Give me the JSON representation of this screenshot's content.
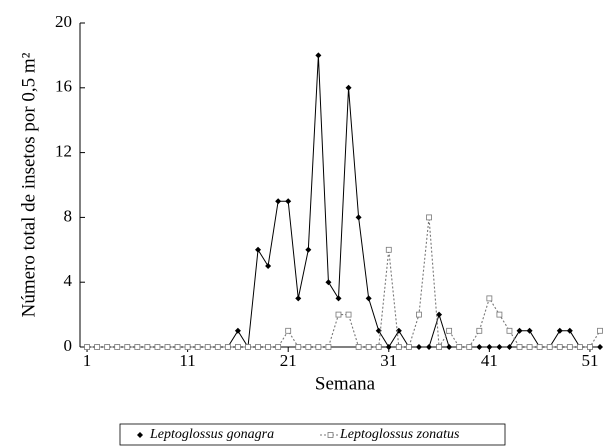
{
  "chart_data": {
    "type": "line",
    "ylabel": "Número total de insetos por  0,5 m²",
    "xlabel": "Semana",
    "x": [
      1,
      2,
      3,
      4,
      5,
      6,
      7,
      8,
      9,
      10,
      11,
      12,
      13,
      14,
      15,
      16,
      17,
      18,
      19,
      20,
      21,
      22,
      23,
      24,
      25,
      26,
      27,
      28,
      29,
      30,
      31,
      32,
      33,
      34,
      35,
      36,
      37,
      38,
      39,
      40,
      41,
      42,
      43,
      44,
      45,
      46,
      47,
      48,
      49,
      50,
      51,
      52
    ],
    "series": [
      {
        "name": "Leptoglossus gonagra",
        "color": "#000000",
        "values": [
          0,
          0,
          0,
          0,
          0,
          0,
          0,
          0,
          0,
          0,
          0,
          0,
          0,
          0,
          0,
          1,
          0,
          6,
          5,
          9,
          9,
          3,
          6,
          18,
          4,
          3,
          16,
          8,
          3,
          1,
          0,
          1,
          0,
          0,
          0,
          2,
          0,
          0,
          0,
          0,
          0,
          0,
          0,
          1,
          1,
          0,
          0,
          1,
          1,
          0,
          0,
          0
        ]
      },
      {
        "name": "Leptoglossus zonatus",
        "color": "#777777",
        "values": [
          0,
          0,
          0,
          0,
          0,
          0,
          0,
          0,
          0,
          0,
          0,
          0,
          0,
          0,
          0,
          0,
          0,
          0,
          0,
          0,
          1,
          0,
          0,
          0,
          0,
          2,
          2,
          0,
          0,
          0,
          6,
          0,
          0,
          2,
          8,
          0,
          1,
          0,
          0,
          1,
          3,
          2,
          1,
          0,
          0,
          0,
          0,
          0,
          0,
          0,
          0,
          1
        ]
      }
    ],
    "xlim": [
      0.3,
      52
    ],
    "xticks": [
      1,
      11,
      21,
      31,
      41,
      51
    ],
    "ylim": [
      0,
      20
    ],
    "yticks": [
      0,
      4,
      8,
      12,
      16,
      20
    ]
  }
}
